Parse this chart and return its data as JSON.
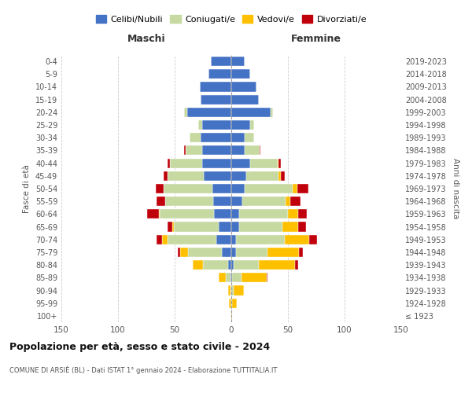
{
  "age_groups": [
    "100+",
    "95-99",
    "90-94",
    "85-89",
    "80-84",
    "75-79",
    "70-74",
    "65-69",
    "60-64",
    "55-59",
    "50-54",
    "45-49",
    "40-44",
    "35-39",
    "30-34",
    "25-29",
    "20-24",
    "15-19",
    "10-14",
    "5-9",
    "0-4"
  ],
  "birth_years": [
    "≤ 1923",
    "1924-1928",
    "1929-1933",
    "1934-1938",
    "1939-1943",
    "1944-1948",
    "1949-1953",
    "1954-1958",
    "1959-1963",
    "1964-1968",
    "1969-1973",
    "1974-1978",
    "1979-1983",
    "1984-1988",
    "1989-1993",
    "1994-1998",
    "1999-2003",
    "2004-2008",
    "2009-2013",
    "2014-2018",
    "2019-2023"
  ],
  "maschi": {
    "celibi": [
      0,
      0,
      0,
      1,
      3,
      8,
      13,
      11,
      15,
      16,
      17,
      24,
      26,
      26,
      27,
      26,
      39,
      27,
      28,
      20,
      18
    ],
    "coniugati": [
      0,
      0,
      1,
      4,
      22,
      30,
      43,
      40,
      48,
      42,
      43,
      32,
      28,
      14,
      10,
      3,
      3,
      0,
      0,
      0,
      0
    ],
    "vedovi": [
      0,
      2,
      2,
      6,
      9,
      7,
      5,
      1,
      1,
      0,
      0,
      0,
      0,
      0,
      0,
      0,
      0,
      0,
      0,
      0,
      0
    ],
    "divorziati": [
      0,
      0,
      0,
      0,
      0,
      2,
      5,
      4,
      10,
      8,
      7,
      4,
      2,
      2,
      0,
      0,
      0,
      0,
      0,
      0,
      0
    ]
  },
  "femmine": {
    "nubili": [
      0,
      0,
      0,
      1,
      2,
      4,
      4,
      7,
      7,
      10,
      12,
      13,
      17,
      12,
      12,
      17,
      35,
      24,
      22,
      17,
      12
    ],
    "coniugate": [
      0,
      1,
      2,
      8,
      22,
      28,
      43,
      38,
      43,
      38,
      42,
      29,
      24,
      13,
      8,
      3,
      2,
      0,
      0,
      0,
      0
    ],
    "vedove": [
      1,
      4,
      9,
      22,
      32,
      28,
      22,
      14,
      9,
      4,
      4,
      2,
      1,
      0,
      0,
      0,
      0,
      0,
      0,
      0,
      0
    ],
    "divorziate": [
      0,
      0,
      0,
      1,
      3,
      3,
      7,
      7,
      8,
      9,
      10,
      3,
      2,
      1,
      0,
      0,
      0,
      0,
      0,
      0,
      0
    ]
  },
  "colors": {
    "celibi": "#4472c4",
    "coniugati": "#c5d9a0",
    "vedovi": "#ffc000",
    "divorziati": "#c0000b"
  },
  "xlim": 150,
  "title": "Popolazione per età, sesso e stato civile - 2024",
  "subtitle": "COMUNE DI ARSIÈ (BL) - Dati ISTAT 1° gennaio 2024 - Elaborazione TUTTITALIA.IT",
  "ylabel_left": "Fasce di età",
  "ylabel_right": "Anni di nascita",
  "legend_labels": [
    "Celibi/Nubili",
    "Coniugati/e",
    "Vedovi/e",
    "Divorziati/e"
  ],
  "maschi_label": "Maschi",
  "femmine_label": "Femmine"
}
